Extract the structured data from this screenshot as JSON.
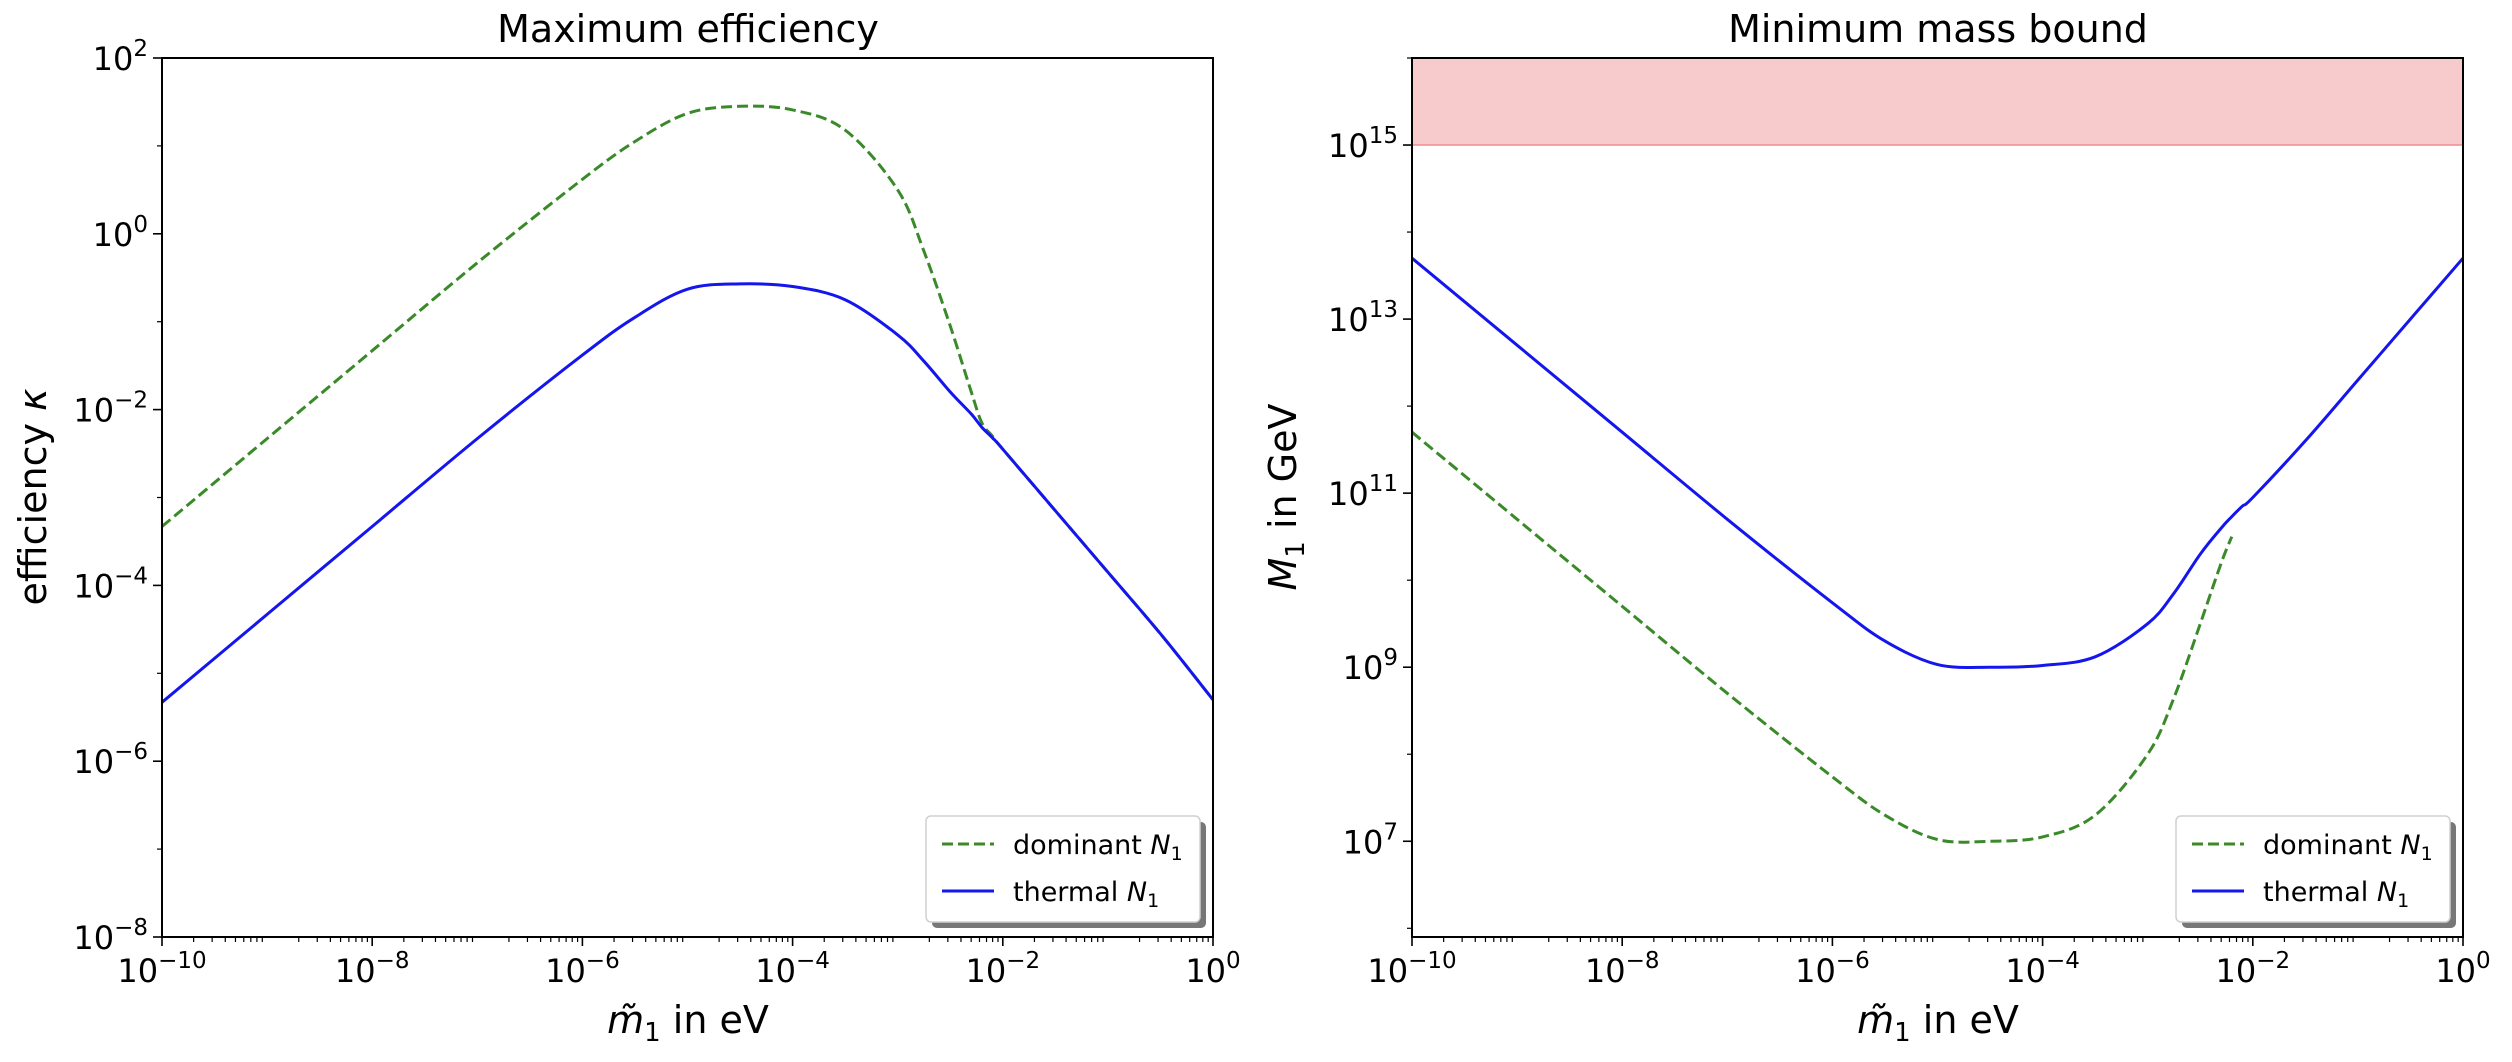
{
  "chart_data": [
    {
      "type": "line",
      "title": "Maximum efficiency",
      "xlabel": {
        "prefix": "m̃",
        "sub": "1",
        "suffix": " in eV"
      },
      "ylabel": {
        "text": "efficiency ",
        "symbol": "κ"
      },
      "xscale": "log",
      "yscale": "log",
      "xlim_log10": [
        -10,
        0
      ],
      "ylim_log10": [
        -8,
        2
      ],
      "xticks_log10": [
        -10,
        -8,
        -6,
        -4,
        -2,
        0
      ],
      "yticks_log10": [
        -8,
        -6,
        -4,
        -2,
        0,
        2
      ],
      "grid": false,
      "legend_position": "lower right",
      "series": [
        {
          "name": {
            "prefix": "dominant ",
            "symbol": "N",
            "sub": "1"
          },
          "color": "#3a8a2a",
          "style": "dashed",
          "x_log10": [
            -10,
            -9,
            -8,
            -7,
            -6,
            -5.5,
            -5,
            -4.5,
            -4,
            -3.5,
            -3,
            -2.75,
            -2.5,
            -2.3,
            -2.2,
            -2.1,
            -2,
            -1.5,
            -1,
            -0.5,
            0
          ],
          "y_log10": [
            -3.33,
            -2.33,
            -1.33,
            -0.33,
            0.62,
            1.05,
            1.37,
            1.45,
            1.41,
            1.18,
            0.5,
            -0.2,
            -1.05,
            -1.8,
            -2.15,
            -2.3,
            -2.45,
            -3.15,
            -3.85,
            -4.55,
            -5.3
          ]
        },
        {
          "name": {
            "prefix": "thermal ",
            "symbol": "N",
            "sub": "1"
          },
          "color": "#1515ee",
          "style": "solid",
          "x_log10": [
            -10,
            -9,
            -8,
            -7,
            -6,
            -5.5,
            -5,
            -4.5,
            -4,
            -3.5,
            -3,
            -2.75,
            -2.5,
            -2.3,
            -2.2,
            -2.1,
            -2,
            -1.5,
            -1,
            -0.5,
            0
          ],
          "y_log10": [
            -5.33,
            -4.33,
            -3.33,
            -2.33,
            -1.38,
            -0.95,
            -0.63,
            -0.57,
            -0.6,
            -0.75,
            -1.15,
            -1.45,
            -1.8,
            -2.05,
            -2.2,
            -2.32,
            -2.45,
            -3.15,
            -3.85,
            -4.55,
            -5.3
          ]
        }
      ]
    },
    {
      "type": "line",
      "title": "Minimum mass bound",
      "xlabel": {
        "prefix": "m̃",
        "sub": "1",
        "suffix": " in eV"
      },
      "ylabel": {
        "symbol": "M",
        "sub": "1",
        "suffix": " in GeV"
      },
      "xscale": "log",
      "yscale": "log",
      "xlim_log10": [
        -10,
        0
      ],
      "ylim_log10": [
        5.9,
        16.0
      ],
      "xticks_log10": [
        -10,
        -8,
        -6,
        -4,
        -2,
        0
      ],
      "yticks_log10": [
        7,
        9,
        11,
        13,
        15
      ],
      "grid": false,
      "legend_position": "lower right",
      "shaded_region": {
        "y_from_log10": 15,
        "y_to_log10": 16,
        "color": "#f4b8bb"
      },
      "series": [
        {
          "name": {
            "prefix": "dominant ",
            "symbol": "N",
            "sub": "1"
          },
          "color": "#3a8a2a",
          "style": "dashed",
          "x_log10": [
            -10,
            -9,
            -8,
            -7,
            -6,
            -5.5,
            -5,
            -4.5,
            -4,
            -3.5,
            -3,
            -2.75,
            -2.5,
            -2.3,
            -2.2
          ],
          "y_log10": [
            11.7,
            10.7,
            9.7,
            8.7,
            7.74,
            7.3,
            7.02,
            7.0,
            7.05,
            7.3,
            8.0,
            8.65,
            9.5,
            10.2,
            10.5
          ]
        },
        {
          "name": {
            "prefix": "thermal ",
            "symbol": "N",
            "sub": "1"
          },
          "color": "#1515ee",
          "style": "solid",
          "x_log10": [
            -10,
            -9,
            -8,
            -7,
            -6,
            -5.5,
            -5,
            -4.5,
            -4,
            -3.5,
            -3,
            -2.75,
            -2.5,
            -2.3,
            -2.2,
            -2.1,
            -2,
            -1.5,
            -1,
            -0.5,
            0
          ],
          "y_log10": [
            13.7,
            12.7,
            11.7,
            10.7,
            9.74,
            9.3,
            9.03,
            9.0,
            9.02,
            9.12,
            9.5,
            9.85,
            10.3,
            10.6,
            10.73,
            10.85,
            10.95,
            11.6,
            12.3,
            13.0,
            13.7
          ]
        }
      ]
    }
  ]
}
